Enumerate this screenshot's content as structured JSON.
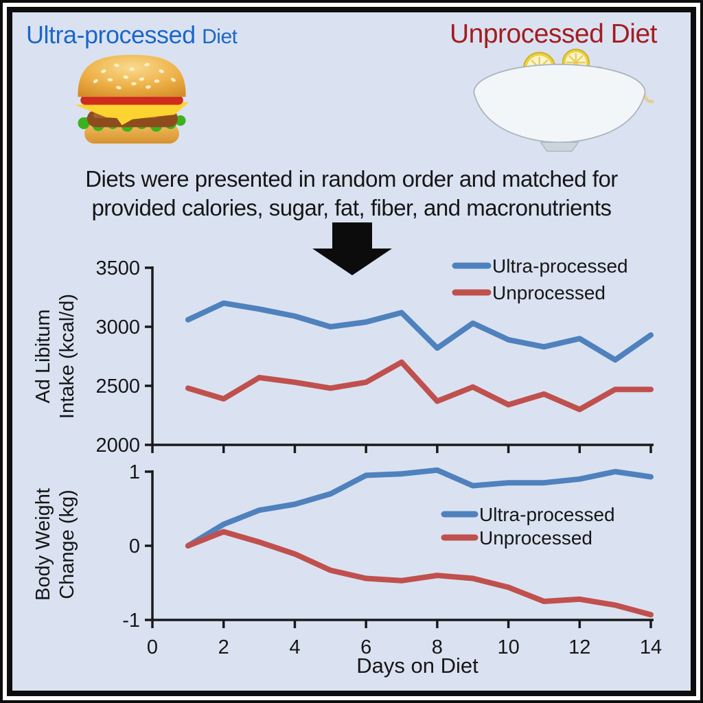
{
  "figure": {
    "background_color": "#dae2f1",
    "border_color": "#0d0d0d"
  },
  "header": {
    "left": {
      "title_main": "Ultra-processed",
      "title_suffix": "Diet",
      "color": "#1b67c9",
      "icon": "burger-icon"
    },
    "right": {
      "title": "Unprocessed Diet",
      "color": "#a31d20",
      "icon": "salmon-bowl-icon"
    }
  },
  "description": {
    "line1": "Diets were presented in random order and matched for",
    "line2": "provided calories, sugar, fat, fiber, and macronutrients"
  },
  "arrow": {
    "icon": "down-block-arrow-icon",
    "color": "#0c0c0c"
  },
  "chart_data": [
    {
      "id": "intake",
      "type": "line",
      "title": "",
      "ylabel": "Ad Libitum Intake (kcal/d)",
      "ylabel_lines": [
        "Ad Libitum",
        "Intake (kcal/d)"
      ],
      "xlabel": "",
      "x": [
        1,
        2,
        3,
        4,
        5,
        6,
        7,
        8,
        9,
        10,
        11,
        12,
        13,
        14
      ],
      "series": [
        {
          "name": "Ultra-processed",
          "color": "#4f81bd",
          "values": [
            3060,
            3200,
            3150,
            3090,
            3000,
            3040,
            3120,
            2820,
            3030,
            2890,
            2830,
            2900,
            2720,
            2930
          ]
        },
        {
          "name": "Unprocessed",
          "color": "#c0504d",
          "values": [
            2480,
            2390,
            2570,
            2530,
            2480,
            2530,
            2700,
            2370,
            2490,
            2340,
            2430,
            2300,
            2470,
            2470
          ]
        }
      ],
      "ylim": [
        2000,
        3500
      ],
      "yticks": [
        2000,
        2500,
        3000,
        3500
      ],
      "xlim": [
        0,
        14
      ],
      "xticks": [
        0,
        2,
        4,
        6,
        8,
        10,
        12,
        14
      ],
      "show_x_tick_labels": false,
      "grid": false,
      "legend_position": "top-right"
    },
    {
      "id": "weight",
      "type": "line",
      "title": "",
      "ylabel": "Body Weight Change (kg)",
      "ylabel_lines": [
        "Body Weight",
        "Change (kg)"
      ],
      "xlabel": "Days on Diet",
      "x": [
        1,
        2,
        3,
        4,
        5,
        6,
        7,
        8,
        9,
        10,
        11,
        12,
        13,
        14
      ],
      "series": [
        {
          "name": "Ultra-processed",
          "color": "#4f81bd",
          "values": [
            0,
            0.29,
            0.48,
            0.56,
            0.7,
            0.95,
            0.97,
            1.02,
            0.81,
            0.85,
            0.85,
            0.9,
            1.0,
            0.93
          ]
        },
        {
          "name": "Unprocessed",
          "color": "#c0504d",
          "values": [
            0,
            0.19,
            0.05,
            -0.11,
            -0.33,
            -0.44,
            -0.47,
            -0.4,
            -0.44,
            -0.56,
            -0.75,
            -0.72,
            -0.8,
            -0.93
          ]
        }
      ],
      "ylim": [
        -1,
        1
      ],
      "yticks": [
        -1,
        0,
        1
      ],
      "xlim": [
        0,
        14
      ],
      "xticks": [
        0,
        2,
        4,
        6,
        8,
        10,
        12,
        14
      ],
      "show_x_tick_labels": true,
      "grid": false,
      "legend_position": "middle-right"
    }
  ]
}
